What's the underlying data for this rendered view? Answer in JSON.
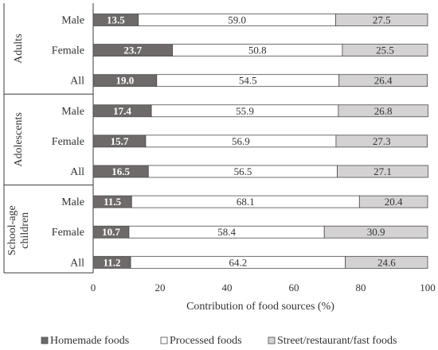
{
  "chart_data": {
    "type": "bar",
    "stacked": true,
    "orientation": "horizontal",
    "xlabel": "Contribution of food sources (%)",
    "xlim": [
      0,
      100
    ],
    "xticks": [
      "0",
      "20",
      "40",
      "60",
      "80",
      "100"
    ],
    "grid": false,
    "legend_position": "bottom",
    "groups": [
      {
        "name": "Adults",
        "label_lines": [
          "Adults"
        ],
        "categories": [
          "Male",
          "Female",
          "All"
        ]
      },
      {
        "name": "Adolescents",
        "label_lines": [
          "Adolescents"
        ],
        "categories": [
          "Male",
          "Female",
          "All"
        ]
      },
      {
        "name": "School-age children",
        "label_lines": [
          "School-age",
          "children"
        ],
        "categories": [
          "Male",
          "Female",
          "All"
        ]
      }
    ],
    "series": [
      {
        "name": "Homemade foods",
        "color": "#6e6a6a",
        "label_color": "#ffffff",
        "bold": true,
        "values": [
          13.5,
          23.7,
          19.0,
          17.4,
          15.7,
          16.5,
          11.5,
          10.7,
          11.2
        ],
        "labels": [
          "13.5",
          "23.7",
          "19.0",
          "17.4",
          "15.7",
          "16.5",
          "11.5",
          "10.7",
          "11.2"
        ]
      },
      {
        "name": "Processed foods",
        "color": "#ffffff",
        "label_color": "#333333",
        "bold": false,
        "values": [
          59.0,
          50.8,
          54.5,
          55.9,
          56.9,
          56.5,
          68.1,
          58.4,
          64.2
        ],
        "labels": [
          "59.0",
          "50.8",
          "54.5",
          "55.9",
          "56.9",
          "56.5",
          "68.1",
          "58.4",
          "64.2"
        ]
      },
      {
        "name": "Street/restaurant/fast foods",
        "color": "#d4d2d2",
        "label_color": "#333333",
        "bold": false,
        "values": [
          27.5,
          25.5,
          26.4,
          26.8,
          27.3,
          27.1,
          20.4,
          30.9,
          24.6
        ],
        "labels": [
          "27.5",
          "25.5",
          "26.4",
          "26.8",
          "27.3",
          "27.1",
          "20.4",
          "30.9",
          "24.6"
        ]
      }
    ]
  }
}
